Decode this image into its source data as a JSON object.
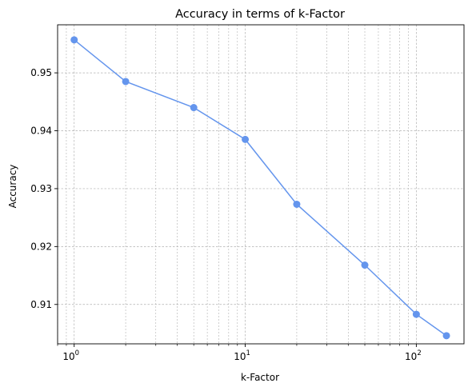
{
  "chart_data": {
    "type": "line",
    "title": "Accuracy in terms of k-Factor",
    "xlabel": "k-Factor",
    "ylabel": "Accuracy",
    "x_scale": "log",
    "x_ticks": [
      {
        "value": 1,
        "base": "10",
        "exp": "0"
      },
      {
        "value": 10,
        "base": "10",
        "exp": "1"
      },
      {
        "value": 100,
        "base": "10",
        "exp": "2"
      }
    ],
    "y_ticks": [
      "0.91",
      "0.92",
      "0.93",
      "0.94",
      "0.95"
    ],
    "xlim": [
      0.8,
      190
    ],
    "ylim": [
      0.9032,
      0.9583
    ],
    "grid": true,
    "grid_minor_x": true,
    "line_color": "#6495ED",
    "series": [
      {
        "x": [
          1,
          2,
          5,
          10,
          20,
          50,
          100,
          150
        ],
        "y": [
          0.9557,
          0.9485,
          0.944,
          0.9385,
          0.9273,
          0.9168,
          0.9083,
          0.9046
        ]
      }
    ]
  }
}
